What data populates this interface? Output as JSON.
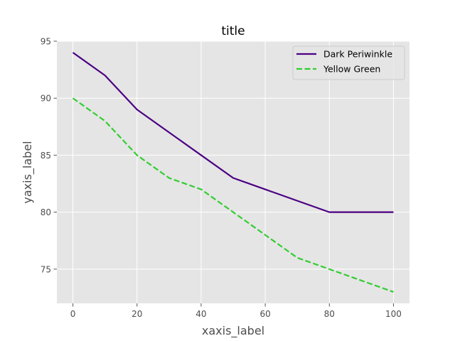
{
  "chart_data": {
    "type": "line",
    "title": "title",
    "xlabel": "xaxis_label",
    "ylabel": "yaxis_label",
    "xlim": [
      -5,
      105
    ],
    "ylim": [
      72,
      95
    ],
    "x_ticks": [
      0,
      20,
      40,
      60,
      80,
      100
    ],
    "y_ticks": [
      75,
      80,
      85,
      90,
      95
    ],
    "grid": true,
    "legend_position": "top-right",
    "background_color": "#e5e5e5",
    "grid_color": "#ffffff",
    "series": [
      {
        "name": "Dark Periwinkle",
        "color": "#4b0082",
        "line_style": "solid",
        "x": [
          0,
          10,
          20,
          30,
          40,
          50,
          60,
          70,
          80,
          90,
          100
        ],
        "y": [
          94,
          92,
          89,
          87,
          85,
          83,
          82,
          81,
          80,
          80,
          80
        ]
      },
      {
        "name": "Yellow Green",
        "color": "#32cd32",
        "line_style": "dashed",
        "x": [
          0,
          10,
          20,
          30,
          40,
          50,
          60,
          70,
          80,
          90,
          100
        ],
        "y": [
          90,
          88,
          85,
          83,
          82,
          80,
          78,
          76,
          75,
          74,
          73
        ]
      }
    ]
  }
}
